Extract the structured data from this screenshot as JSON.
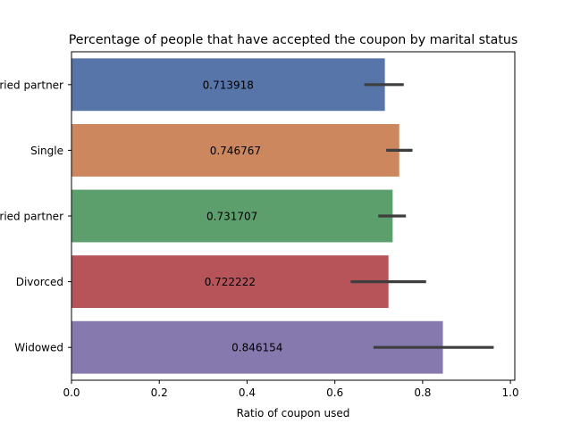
{
  "chart_data": {
    "type": "bar",
    "orientation": "horizontal",
    "title": "Percentage of people that have accepted the coupon by marital status",
    "xlabel": "Ratio of coupon used",
    "ylabel": "",
    "xlim": [
      0,
      1.01
    ],
    "x_ticks": [
      0.0,
      0.2,
      0.4,
      0.6,
      0.8,
      1.0
    ],
    "x_tick_labels": [
      "0.0",
      "0.2",
      "0.4",
      "0.6",
      "0.8",
      "1.0"
    ],
    "grid": false,
    "categories": [
      "Unmarried partner",
      "Single",
      "Married partner",
      "Divorced",
      "Widowed"
    ],
    "values": [
      0.713918,
      0.746767,
      0.731707,
      0.722222,
      0.846154
    ],
    "value_labels": [
      "0.713918",
      "0.746767",
      "0.731707",
      "0.722222",
      "0.846154"
    ],
    "error_low": [
      0.667,
      0.717,
      0.699,
      0.636,
      0.688
    ],
    "error_high": [
      0.757,
      0.777,
      0.762,
      0.808,
      0.962
    ],
    "colors": [
      "#5875a9",
      "#cd875f",
      "#5c9f6c",
      "#b65459",
      "#8679ad"
    ],
    "error_color": "#3e3e3e"
  }
}
